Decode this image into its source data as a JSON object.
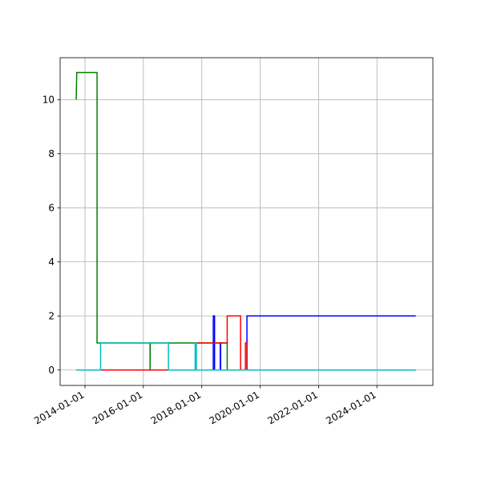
{
  "chart_data": {
    "type": "line",
    "xlim": [
      "2013-02-24",
      "2025-12-01"
    ],
    "ylim": [
      -0.57,
      11.55
    ],
    "xticks": [
      "2014-01-01",
      "2016-01-01",
      "2018-01-01",
      "2020-01-01",
      "2022-01-01",
      "2024-01-01"
    ],
    "yticks": [
      0,
      2,
      4,
      6,
      8,
      10
    ],
    "grid": true,
    "series": [
      {
        "color": "#008000",
        "x": [
          "2013-09-13",
          "2013-09-20",
          "2014-06-01",
          "2014-06-01",
          "2016-03-25",
          "2016-03-25",
          "2016-03-28",
          "2018-11-15",
          "2018-11-15",
          "2025-05-01"
        ],
        "values": [
          10,
          11,
          11,
          1,
          1,
          0,
          1,
          1,
          0,
          0
        ]
      },
      {
        "color": "#0000ff",
        "x": [
          "2013-09-13",
          "2018-05-25",
          "2018-05-25",
          "2018-06-10",
          "2018-06-10",
          "2018-08-20",
          "2018-08-20",
          "2018-08-25",
          "2018-08-25",
          "2019-07-20",
          "2019-07-20",
          "2025-05-01"
        ],
        "values": [
          0,
          0,
          2,
          2,
          0,
          0,
          1,
          1,
          0,
          0,
          2,
          2
        ]
      },
      {
        "color": "#ff0000",
        "x": [
          "2014-07-01",
          "2017-10-20",
          "2017-10-20",
          "2018-11-15",
          "2018-11-15",
          "2019-05-01",
          "2019-05-01",
          "2019-07-01",
          "2019-07-01",
          "2019-07-20",
          "2019-07-20"
        ],
        "values": [
          0,
          0,
          1,
          1,
          2,
          2,
          0,
          0,
          1,
          1,
          0
        ]
      },
      {
        "color": "#00bfbf",
        "x": [
          "2013-09-13",
          "2014-07-15",
          "2014-07-15",
          "2016-11-10",
          "2016-11-10",
          "2017-10-10",
          "2017-10-10",
          "2017-10-25",
          "2017-10-25",
          "2025-05-01"
        ],
        "values": [
          0,
          0,
          1,
          1,
          0,
          0,
          1,
          1,
          0,
          0
        ]
      }
    ]
  }
}
